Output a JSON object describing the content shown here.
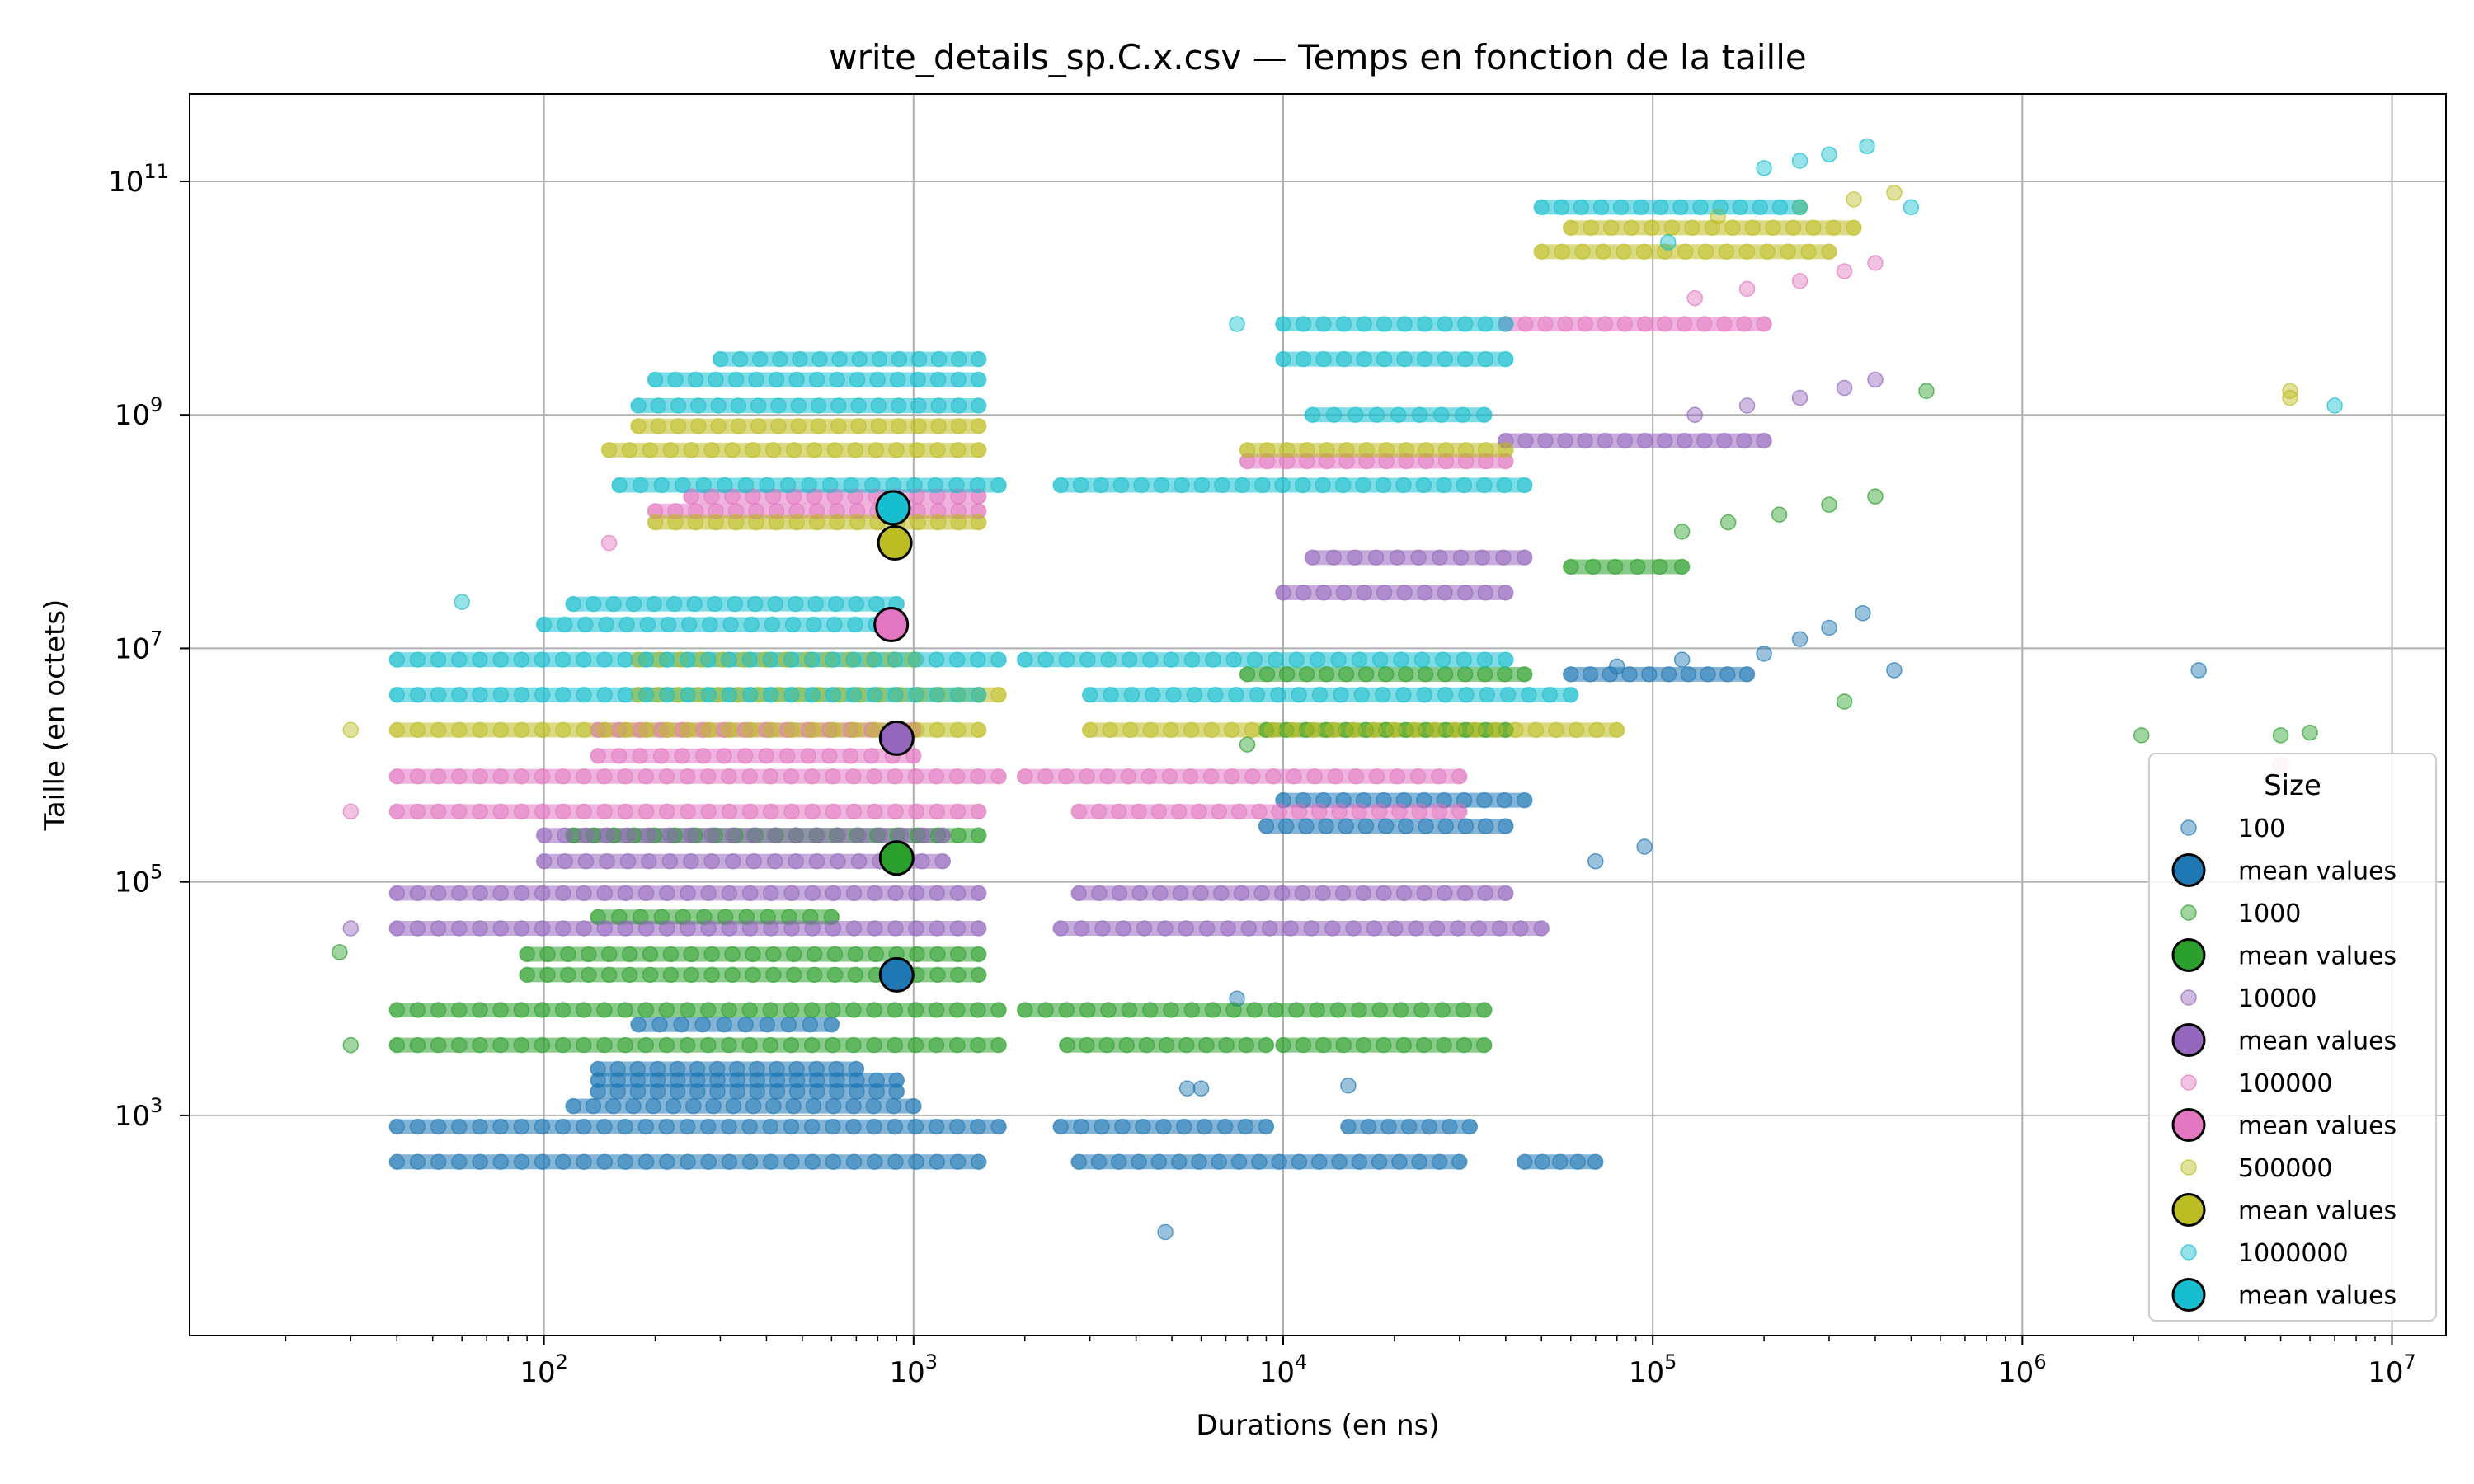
{
  "chart_data": {
    "type": "scatter",
    "title": "write_details_sp.C.x.csv — Temps en fonction de la taille",
    "xlabel": "Durations (en ns)",
    "ylabel": "Taille (en octets)",
    "xscale": "log",
    "yscale": "log",
    "xlim": [
      11,
      14000000
    ],
    "ylim": [
      13,
      560000000000
    ],
    "grid": true,
    "x_ticks": [
      {
        "value": 100,
        "base": "10",
        "exp": "2"
      },
      {
        "value": 1000,
        "base": "10",
        "exp": "3"
      },
      {
        "value": 10000,
        "base": "10",
        "exp": "4"
      },
      {
        "value": 100000,
        "base": "10",
        "exp": "5"
      },
      {
        "value": 1000000,
        "base": "10",
        "exp": "6"
      },
      {
        "value": 10000000,
        "base": "10",
        "exp": "7"
      }
    ],
    "y_ticks": [
      {
        "value": 1000,
        "base": "10",
        "exp": "3"
      },
      {
        "value": 100000,
        "base": "10",
        "exp": "5"
      },
      {
        "value": 10000000,
        "base": "10",
        "exp": "7"
      },
      {
        "value": 1000000000,
        "base": "10",
        "exp": "9"
      },
      {
        "value": 100000000000,
        "base": "10",
        "exp": "11"
      }
    ],
    "legend": {
      "title": "Size",
      "placement": "lower right",
      "entries": [
        {
          "label": "100",
          "kind": "points",
          "color": "#1f77b4"
        },
        {
          "label": "mean values",
          "kind": "mean",
          "color": "#1f77b4"
        },
        {
          "label": "1000",
          "kind": "points",
          "color": "#2ca02c"
        },
        {
          "label": "mean values",
          "kind": "mean",
          "color": "#2ca02c"
        },
        {
          "label": "10000",
          "kind": "points",
          "color": "#9467bd"
        },
        {
          "label": "mean values",
          "kind": "mean",
          "color": "#9467bd"
        },
        {
          "label": "100000",
          "kind": "points",
          "color": "#e377c2"
        },
        {
          "label": "mean values",
          "kind": "mean",
          "color": "#e377c2"
        },
        {
          "label": "500000",
          "kind": "points",
          "color": "#bcbd22"
        },
        {
          "label": "mean values",
          "kind": "mean",
          "color": "#bcbd22"
        },
        {
          "label": "1000000",
          "kind": "points",
          "color": "#17becf"
        },
        {
          "label": "mean values",
          "kind": "mean",
          "color": "#17becf"
        }
      ]
    },
    "series": [
      {
        "name": "100",
        "color": "#1f77b4",
        "mean": {
          "x": 900,
          "y": 16000
        },
        "bands": [
          {
            "y": 400,
            "x_start": 40,
            "x_end": 1500
          },
          {
            "y": 400,
            "x_start": 2800,
            "x_end": 30000
          },
          {
            "y": 400,
            "x_start": 45000,
            "x_end": 70000
          },
          {
            "y": 800,
            "x_start": 40,
            "x_end": 1700
          },
          {
            "y": 800,
            "x_start": 2500,
            "x_end": 9000
          },
          {
            "y": 800,
            "x_start": 15000,
            "x_end": 32000
          },
          {
            "y": 1200,
            "x_start": 120,
            "x_end": 1000
          },
          {
            "y": 1600,
            "x_start": 140,
            "x_end": 900
          },
          {
            "y": 2000,
            "x_start": 140,
            "x_end": 900
          },
          {
            "y": 2500,
            "x_start": 140,
            "x_end": 700
          },
          {
            "y": 6000,
            "x_start": 180,
            "x_end": 600
          },
          {
            "y": 300000,
            "x_start": 9000,
            "x_end": 40000
          },
          {
            "y": 500000,
            "x_start": 10000,
            "x_end": 45000
          },
          {
            "y": 6000000,
            "x_start": 60000,
            "x_end": 180000
          }
        ],
        "points": [
          {
            "x": 4800,
            "y": 100
          },
          {
            "x": 5500,
            "y": 1700
          },
          {
            "x": 6000,
            "y": 1700
          },
          {
            "x": 7500,
            "y": 10000
          },
          {
            "x": 15000,
            "y": 1800
          },
          {
            "x": 80000,
            "y": 7000000
          },
          {
            "x": 120000,
            "y": 8000000
          },
          {
            "x": 200000,
            "y": 9000000
          },
          {
            "x": 250000,
            "y": 12000000
          },
          {
            "x": 300000,
            "y": 15000000
          },
          {
            "x": 370000,
            "y": 20000000
          },
          {
            "x": 450000,
            "y": 6500000
          },
          {
            "x": 3000000,
            "y": 6500000
          },
          {
            "x": 95000,
            "y": 200000
          },
          {
            "x": 70000,
            "y": 150000
          }
        ]
      },
      {
        "name": "1000",
        "color": "#2ca02c",
        "mean": {
          "x": 900,
          "y": 160000
        },
        "bands": [
          {
            "y": 4000,
            "x_start": 40,
            "x_end": 1700
          },
          {
            "y": 4000,
            "x_start": 2600,
            "x_end": 9000
          },
          {
            "y": 4000,
            "x_start": 10000,
            "x_end": 35000
          },
          {
            "y": 8000,
            "x_start": 40,
            "x_end": 1700
          },
          {
            "y": 8000,
            "x_start": 2000,
            "x_end": 35000
          },
          {
            "y": 16000,
            "x_start": 90,
            "x_end": 1500
          },
          {
            "y": 24000,
            "x_start": 90,
            "x_end": 1500
          },
          {
            "y": 50000,
            "x_start": 140,
            "x_end": 600
          },
          {
            "y": 250000,
            "x_start": 120,
            "x_end": 1500
          },
          {
            "y": 2000000,
            "x_start": 9000,
            "x_end": 40000
          },
          {
            "y": 6000000,
            "x_start": 8000,
            "x_end": 45000
          },
          {
            "y": 50000000,
            "x_start": 60000,
            "x_end": 120000
          }
        ],
        "points": [
          {
            "x": 30,
            "y": 4000
          },
          {
            "x": 28,
            "y": 25000
          },
          {
            "x": 120000,
            "y": 100000000
          },
          {
            "x": 160000,
            "y": 120000000
          },
          {
            "x": 220000,
            "y": 140000000
          },
          {
            "x": 300000,
            "y": 170000000
          },
          {
            "x": 400000,
            "y": 200000000
          },
          {
            "x": 550000,
            "y": 1600000000
          },
          {
            "x": 330000,
            "y": 3500000
          },
          {
            "x": 2100000,
            "y": 1800000
          },
          {
            "x": 5000000,
            "y": 1800000
          },
          {
            "x": 6000000,
            "y": 1900000
          },
          {
            "x": 8000,
            "y": 1500000
          }
        ]
      },
      {
        "name": "10000",
        "color": "#9467bd",
        "mean": {
          "x": 900,
          "y": 1700000
        },
        "bands": [
          {
            "y": 40000,
            "x_start": 40,
            "x_end": 1500
          },
          {
            "y": 40000,
            "x_start": 2500,
            "x_end": 50000
          },
          {
            "y": 80000,
            "x_start": 40,
            "x_end": 1500
          },
          {
            "y": 80000,
            "x_start": 2800,
            "x_end": 40000
          },
          {
            "y": 150000,
            "x_start": 100,
            "x_end": 1200
          },
          {
            "y": 250000,
            "x_start": 100,
            "x_end": 1200
          },
          {
            "y": 30000000,
            "x_start": 10000,
            "x_end": 40000
          },
          {
            "y": 60000000,
            "x_start": 12000,
            "x_end": 45000
          },
          {
            "y": 600000000,
            "x_start": 40000,
            "x_end": 200000
          }
        ],
        "points": [
          {
            "x": 30,
            "y": 40000
          },
          {
            "x": 130000,
            "y": 1000000000
          },
          {
            "x": 180000,
            "y": 1200000000
          },
          {
            "x": 250000,
            "y": 1400000000
          },
          {
            "x": 330000,
            "y": 1700000000
          },
          {
            "x": 400000,
            "y": 2000000000
          }
        ]
      },
      {
        "name": "100000",
        "color": "#e377c2",
        "mean": {
          "x": 870,
          "y": 16000000
        },
        "bands": [
          {
            "y": 400000,
            "x_start": 40,
            "x_end": 1500
          },
          {
            "y": 400000,
            "x_start": 2800,
            "x_end": 30000
          },
          {
            "y": 800000,
            "x_start": 40,
            "x_end": 1700
          },
          {
            "y": 800000,
            "x_start": 2000,
            "x_end": 30000
          },
          {
            "y": 1200000,
            "x_start": 140,
            "x_end": 1000
          },
          {
            "y": 2000000,
            "x_start": 140,
            "x_end": 1000
          },
          {
            "y": 150000000,
            "x_start": 200,
            "x_end": 1500
          },
          {
            "y": 200000000,
            "x_start": 250,
            "x_end": 1500
          },
          {
            "y": 400000000,
            "x_start": 8000,
            "x_end": 40000
          },
          {
            "y": 6000000000,
            "x_start": 40000,
            "x_end": 200000
          }
        ],
        "points": [
          {
            "x": 30,
            "y": 400000
          },
          {
            "x": 130000,
            "y": 10000000000
          },
          {
            "x": 180000,
            "y": 12000000000
          },
          {
            "x": 250000,
            "y": 14000000000
          },
          {
            "x": 330000,
            "y": 17000000000
          },
          {
            "x": 400000,
            "y": 20000000000
          },
          {
            "x": 5000000,
            "y": 1000000
          },
          {
            "x": 150,
            "y": 80000000
          }
        ]
      },
      {
        "name": "500000",
        "color": "#bcbd22",
        "mean": {
          "x": 890,
          "y": 80000000
        },
        "bands": [
          {
            "y": 2000000,
            "x_start": 40,
            "x_end": 1500
          },
          {
            "y": 2000000,
            "x_start": 3000,
            "x_end": 80000
          },
          {
            "y": 4000000,
            "x_start": 180,
            "x_end": 1700
          },
          {
            "y": 8000000,
            "x_start": 180,
            "x_end": 1000
          },
          {
            "y": 120000000,
            "x_start": 200,
            "x_end": 1500
          },
          {
            "y": 500000000,
            "x_start": 150,
            "x_end": 1500
          },
          {
            "y": 800000000,
            "x_start": 180,
            "x_end": 1500
          },
          {
            "y": 500000000,
            "x_start": 8000,
            "x_end": 40000
          },
          {
            "y": 25000000000,
            "x_start": 50000,
            "x_end": 300000
          },
          {
            "y": 40000000000,
            "x_start": 60000,
            "x_end": 350000
          }
        ],
        "points": [
          {
            "x": 30,
            "y": 2000000
          },
          {
            "x": 150000,
            "y": 50000000000
          },
          {
            "x": 250000,
            "y": 60000000000
          },
          {
            "x": 350000,
            "y": 70000000000
          },
          {
            "x": 450000,
            "y": 80000000000
          },
          {
            "x": 5300000,
            "y": 1600000000
          },
          {
            "x": 5300000,
            "y": 1400000000
          }
        ]
      },
      {
        "name": "1000000",
        "color": "#17becf",
        "mean": {
          "x": 880,
          "y": 160000000
        },
        "bands": [
          {
            "y": 4000000,
            "x_start": 40,
            "x_end": 1500
          },
          {
            "y": 4000000,
            "x_start": 3000,
            "x_end": 60000
          },
          {
            "y": 8000000,
            "x_start": 40,
            "x_end": 1700
          },
          {
            "y": 8000000,
            "x_start": 2000,
            "x_end": 40000
          },
          {
            "y": 16000000,
            "x_start": 100,
            "x_end": 900
          },
          {
            "y": 24000000,
            "x_start": 120,
            "x_end": 900
          },
          {
            "y": 250000000,
            "x_start": 160,
            "x_end": 1700
          },
          {
            "y": 250000000,
            "x_start": 2500,
            "x_end": 45000
          },
          {
            "y": 1200000000,
            "x_start": 180,
            "x_end": 1500
          },
          {
            "y": 2000000000,
            "x_start": 200,
            "x_end": 1500
          },
          {
            "y": 3000000000,
            "x_start": 300,
            "x_end": 1500
          },
          {
            "y": 1000000000,
            "x_start": 12000,
            "x_end": 35000
          },
          {
            "y": 3000000000,
            "x_start": 10000,
            "x_end": 40000
          },
          {
            "y": 6000000000,
            "x_start": 10000,
            "x_end": 40000
          },
          {
            "y": 60000000000,
            "x_start": 50000,
            "x_end": 250000
          }
        ],
        "points": [
          {
            "x": 60,
            "y": 25000000
          },
          {
            "x": 110000,
            "y": 30000000000
          },
          {
            "x": 200000,
            "y": 130000000000
          },
          {
            "x": 250000,
            "y": 150000000000
          },
          {
            "x": 300000,
            "y": 170000000000
          },
          {
            "x": 380000,
            "y": 200000000000
          },
          {
            "x": 500000,
            "y": 60000000000
          },
          {
            "x": 7000000,
            "y": 1200000000
          },
          {
            "x": 7500,
            "y": 6000000000
          }
        ]
      }
    ]
  }
}
